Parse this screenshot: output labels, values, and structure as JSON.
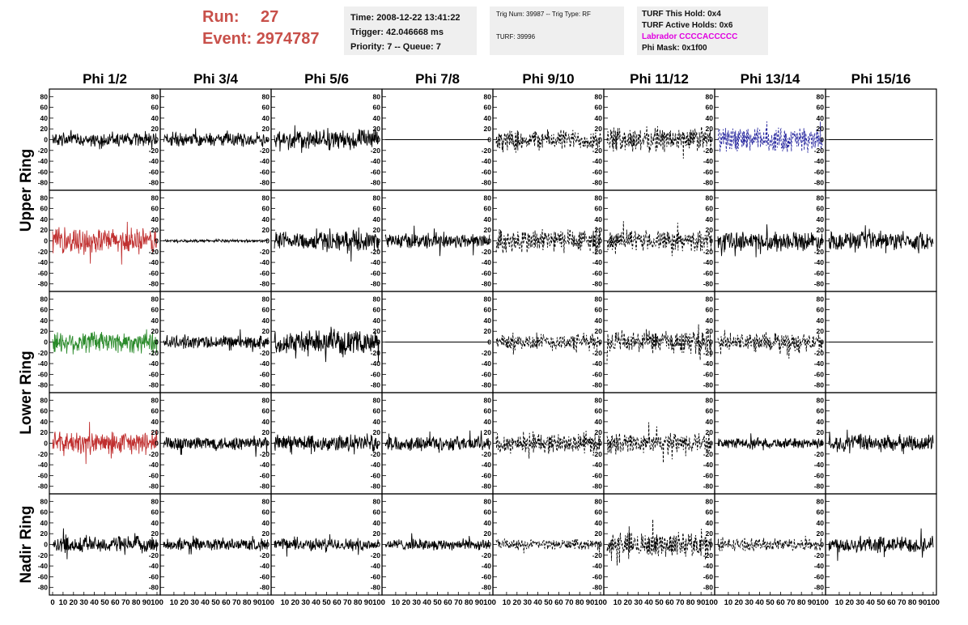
{
  "header": {
    "run_label": "Run:",
    "run_value": "27",
    "event_label": "Event:",
    "event_value": "2974787",
    "time": "Time: 2008-12-22 13:41:22",
    "trigger": "Trigger: 42.046668 ms",
    "priority": "Priority: 7 -- Queue: 7",
    "trig_num": "Trig Num: 39987 -- Trig Type: RF",
    "turf": "TURF: 39996",
    "turf_this_hold": "TURF This Hold: 0x4",
    "turf_active_holds": "TURF Active Holds: 0x6",
    "labrador": "Labrador CCCCACCCCC",
    "phi_mask": "Phi Mask: 0x1f00"
  },
  "colors": {
    "run_text": "#c8504a",
    "labrador_text": "#e000e0",
    "info_bg": "#efefef",
    "trace_black": "#000000",
    "trace_red": "#c03030",
    "trace_green": "#2a8a2a",
    "trace_blue": "#2a2aa0"
  },
  "chart_data": {
    "type": "line",
    "columns": [
      "Phi 1/2",
      "Phi 3/4",
      "Phi 5/6",
      "Phi 7/8",
      "Phi 9/10",
      "Phi 11/12",
      "Phi 13/14",
      "Phi 15/16"
    ],
    "row_groups": [
      "Upper Ring",
      "Lower Ring",
      "Nadir Ring"
    ],
    "rows_per_group": [
      2,
      2,
      1
    ],
    "ylim": [
      -85,
      85
    ],
    "yticks": [
      80,
      60,
      40,
      20,
      0,
      -20,
      -40,
      -60,
      -80
    ],
    "xlim": [
      0,
      100
    ],
    "xticks": [
      0,
      10,
      20,
      30,
      40,
      50,
      60,
      70,
      80,
      90,
      100
    ],
    "panels": [
      [
        {
          "amp": 12,
          "style": "solid",
          "color": "black"
        },
        {
          "amp": 12,
          "style": "solid",
          "color": "black"
        },
        {
          "amp": 18,
          "style": "solid",
          "color": "black"
        },
        {
          "amp": 0,
          "style": "flat",
          "color": "black"
        },
        {
          "amp": 18,
          "style": "dashed",
          "color": "black"
        },
        {
          "amp": 22,
          "style": "dashed",
          "color": "black"
        },
        {
          "amp": 22,
          "style": "dashed",
          "color": "blue"
        },
        {
          "amp": 0,
          "style": "flat",
          "color": "black"
        }
      ],
      [
        {
          "amp": 22,
          "style": "solid",
          "color": "red"
        },
        {
          "amp": 2.5,
          "style": "solid",
          "color": "black"
        },
        {
          "amp": 17,
          "style": "solid",
          "color": "black"
        },
        {
          "amp": 14,
          "style": "solid",
          "color": "black"
        },
        {
          "amp": 22,
          "style": "dashed",
          "color": "black"
        },
        {
          "amp": 18,
          "style": "dashed",
          "color": "black"
        },
        {
          "amp": 17,
          "style": "solid",
          "color": "black"
        },
        {
          "amp": 16,
          "style": "solid",
          "color": "black"
        }
      ],
      [
        {
          "amp": 20,
          "style": "solid",
          "color": "green"
        },
        {
          "amp": 12,
          "style": "solid",
          "color": "black"
        },
        {
          "amp": 20,
          "style": "solid",
          "color": "black"
        },
        {
          "amp": 0,
          "style": "flat",
          "color": "black"
        },
        {
          "amp": 15,
          "style": "dashed",
          "color": "black"
        },
        {
          "amp": 20,
          "style": "dashed",
          "color": "black"
        },
        {
          "amp": 16,
          "style": "dashed",
          "color": "black"
        },
        {
          "amp": 0,
          "style": "flat",
          "color": "black"
        }
      ],
      [
        {
          "amp": 20,
          "style": "solid",
          "color": "red"
        },
        {
          "amp": 13,
          "style": "solid",
          "color": "black"
        },
        {
          "amp": 15,
          "style": "solid",
          "color": "black"
        },
        {
          "amp": 13,
          "style": "solid",
          "color": "black"
        },
        {
          "amp": 18,
          "style": "dashed",
          "color": "black"
        },
        {
          "amp": 18,
          "style": "dashed",
          "color": "black"
        },
        {
          "amp": 9,
          "style": "solid",
          "color": "black"
        },
        {
          "amp": 15,
          "style": "solid",
          "color": "black"
        }
      ],
      [
        {
          "amp": 15,
          "style": "solid",
          "color": "black"
        },
        {
          "amp": 11,
          "style": "solid",
          "color": "black"
        },
        {
          "amp": 11,
          "style": "solid",
          "color": "black"
        },
        {
          "amp": 10,
          "style": "solid",
          "color": "black"
        },
        {
          "amp": 9,
          "style": "dashed",
          "color": "black"
        },
        {
          "amp": 22,
          "style": "dashed",
          "color": "black"
        },
        {
          "amp": 11,
          "style": "dashed",
          "color": "black"
        },
        {
          "amp": 15,
          "style": "solid",
          "color": "black"
        }
      ]
    ]
  }
}
